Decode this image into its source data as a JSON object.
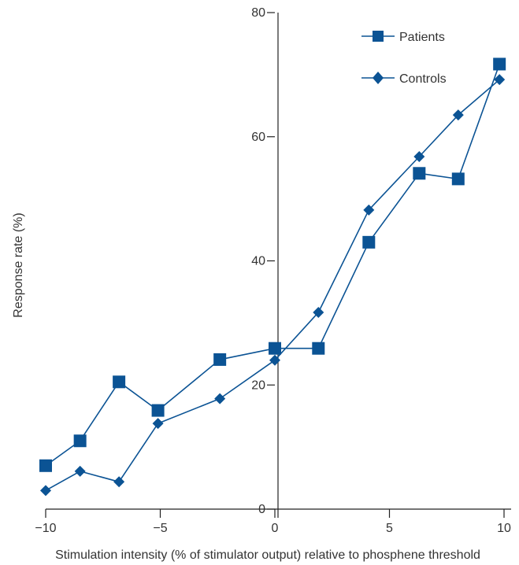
{
  "colors": {
    "series": "#0b5394",
    "axis": "#222222",
    "text": "#333333"
  },
  "chart_data": {
    "type": "line",
    "title": "",
    "xlabel": "Stimulation intensity (% of stimulator output) relative to phosphene threshold",
    "ylabel": "Response rate (%)",
    "xlim": [
      -10,
      10
    ],
    "ylim": [
      0,
      80
    ],
    "x_ticks": [
      -10,
      -5,
      0,
      5,
      10
    ],
    "x_tick_labels": [
      "−10",
      "−5",
      "0",
      "5",
      "10"
    ],
    "y_ticks": [
      0,
      20,
      40,
      60,
      80
    ],
    "y_tick_labels": [
      "0",
      "20",
      "40",
      "60",
      "80"
    ],
    "grid": false,
    "legend_position": "top-right",
    "series": [
      {
        "name": "Patients",
        "marker": "square",
        "x": [
          -10.0,
          -8.5,
          -6.8,
          -5.1,
          -2.4,
          0.0,
          1.9,
          4.1,
          6.3,
          8.0,
          9.8
        ],
        "y": [
          7.0,
          11.0,
          20.5,
          15.9,
          24.1,
          25.9,
          25.9,
          43.0,
          54.1,
          53.2,
          71.7
        ]
      },
      {
        "name": "Controls",
        "marker": "diamond",
        "x": [
          -10.0,
          -8.5,
          -6.8,
          -5.1,
          -2.4,
          0.0,
          1.9,
          4.1,
          6.3,
          8.0,
          9.8
        ],
        "y": [
          3.0,
          6.1,
          4.4,
          13.8,
          17.8,
          24.0,
          31.7,
          48.2,
          56.8,
          63.5,
          69.2
        ]
      }
    ]
  }
}
